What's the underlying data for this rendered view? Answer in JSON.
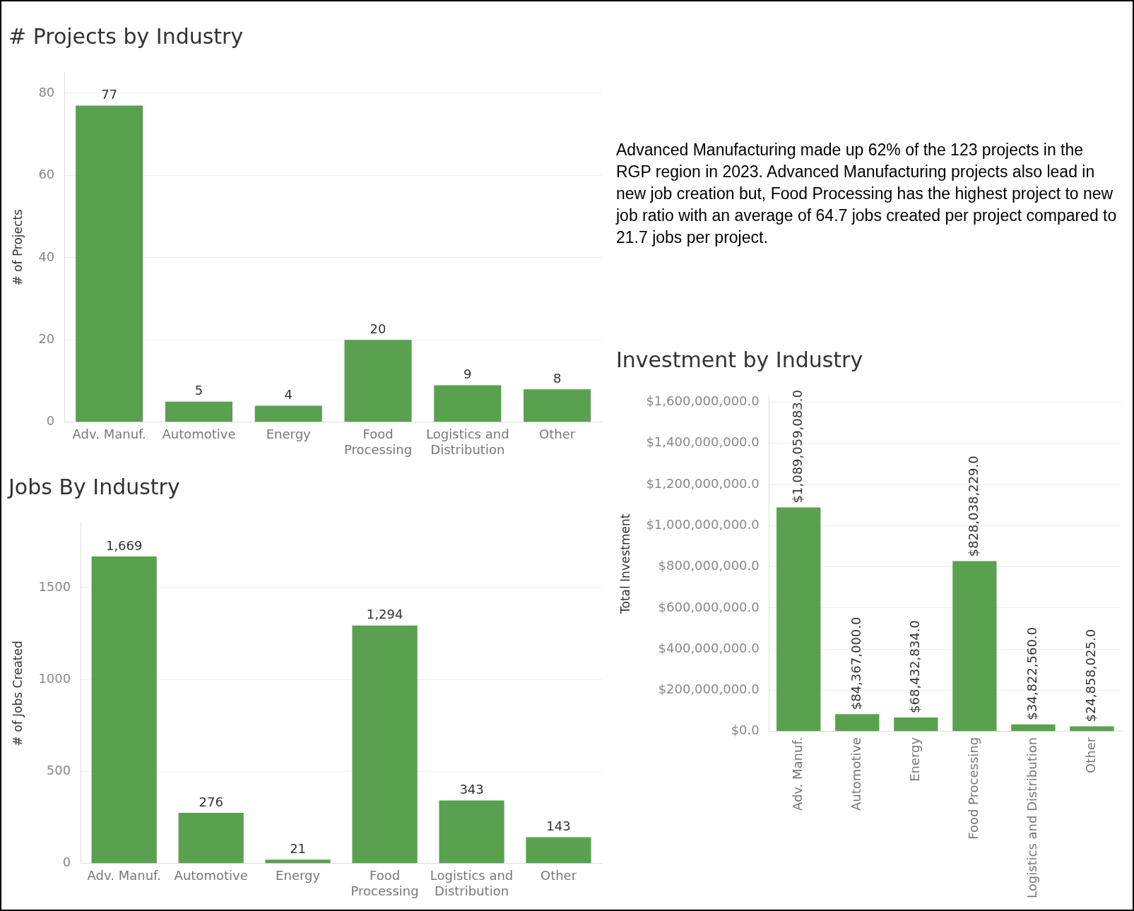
{
  "chart_data": [
    {
      "type": "bar",
      "title": "# Projects by Industry",
      "ylabel": "# of Projects",
      "categories": [
        "Adv. Manuf.",
        "Automotive",
        "Energy",
        "Food Processing",
        "Logistics and Distribution",
        "Other"
      ],
      "values": [
        77,
        5,
        4,
        20,
        9,
        8
      ],
      "color": "#59a14f",
      "ylim": [
        0,
        85
      ],
      "yticks": [
        0,
        20,
        40,
        60,
        80
      ],
      "grid": "y",
      "data_labels": true
    },
    {
      "type": "other",
      "annotations": [
        "Advanced Manufacturing made up 62% of the 123 projects in the RGP region in 2023. Advanced Manufacturing projects also lead in new job creation but, Food Processing has the highest project to new job ratio with an average of 64.7 jobs created per project compared to 21.7 jobs per project."
      ]
    },
    {
      "type": "bar",
      "title": "Jobs By Industry",
      "ylabel": "# of Jobs Created",
      "categories": [
        "Adv. Manuf.",
        "Automotive",
        "Energy",
        "Food Processing",
        "Logistics and Distribution",
        "Other"
      ],
      "values": [
        1669,
        276,
        21,
        1294,
        343,
        143
      ],
      "value_labels": [
        "1,669",
        "276",
        "21",
        "1,294",
        "343",
        "143"
      ],
      "color": "#59a14f",
      "ylim": [
        0,
        1850
      ],
      "yticks": [
        0,
        500,
        1000,
        1500
      ],
      "grid": "y"
    },
    {
      "type": "bar",
      "title": "Investment by Industry",
      "ylabel": "Total Investment",
      "categories": [
        "Adv. Manuf.",
        "Automotive",
        "Energy",
        "Food Processing",
        "Logistics and Distribution",
        "Other"
      ],
      "values": [
        1089059083,
        84367000,
        68432834,
        828038229,
        34822560,
        24858025
      ],
      "value_labels": [
        "$1,089,059,083.0",
        "$84,367,000.0",
        "$68,432,834.0",
        "$828,038,229.0",
        "$34,822,560.0",
        "$24,858,025.0"
      ],
      "color": "#59a14f",
      "ylim": [
        0,
        1630000000
      ],
      "yticks": [
        {
          "value": 0,
          "label": "$0.0"
        },
        {
          "value": 200000000,
          "label": "$200,000,000.0"
        },
        {
          "value": 400000000,
          "label": "$400,000,000.0"
        },
        {
          "value": 600000000,
          "label": "$600,000,000.0"
        },
        {
          "value": 800000000,
          "label": "$800,000,000.0"
        },
        {
          "value": 1000000000,
          "label": "$1,000,000,000.0"
        },
        {
          "value": 1200000000,
          "label": "$1,200,000,000.0"
        },
        {
          "value": 1400000000,
          "label": "$1,400,000,000.0"
        },
        {
          "value": 1600000000,
          "label": "$1,600,000,000.0"
        }
      ],
      "grid": "y"
    }
  ]
}
